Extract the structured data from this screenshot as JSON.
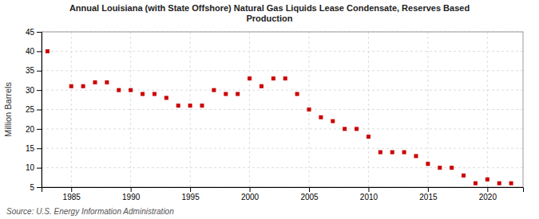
{
  "chart_data": {
    "type": "scatter",
    "title": "Annual Louisiana (with State Offshore) Natural Gas Liquids Lease Condensate, Reserves Based\nProduction",
    "y_label": "Million Barrels",
    "annotations": [
      "Source: U.S. Energy Information Administration"
    ],
    "x": [
      1983,
      1985,
      1986,
      1987,
      1988,
      1989,
      1990,
      1991,
      1992,
      1993,
      1994,
      1995,
      1996,
      1997,
      1998,
      1999,
      2000,
      2001,
      2002,
      2003,
      2004,
      2005,
      2006,
      2007,
      2008,
      2009,
      2010,
      2011,
      2012,
      2013,
      2014,
      2015,
      2016,
      2017,
      2018,
      2019,
      2020,
      2021,
      2022
    ],
    "values": [
      40,
      31,
      31,
      32,
      32,
      30,
      30,
      29,
      29,
      28,
      26,
      26,
      26,
      30,
      29,
      29,
      33,
      31,
      33,
      33,
      29,
      25,
      23,
      22,
      20,
      20,
      18,
      14,
      14,
      14,
      13,
      11,
      10,
      10,
      8,
      6,
      7,
      6,
      6
    ],
    "color": "#cc0000",
    "marker": "square",
    "xlim": [
      1982.5,
      2023
    ],
    "ylim": [
      5,
      45
    ],
    "xticks": [
      1985,
      1990,
      1995,
      2000,
      2005,
      2010,
      2015,
      2020
    ],
    "yticks": [
      5,
      10,
      15,
      20,
      25,
      30,
      35,
      40,
      45
    ],
    "grid": true
  }
}
